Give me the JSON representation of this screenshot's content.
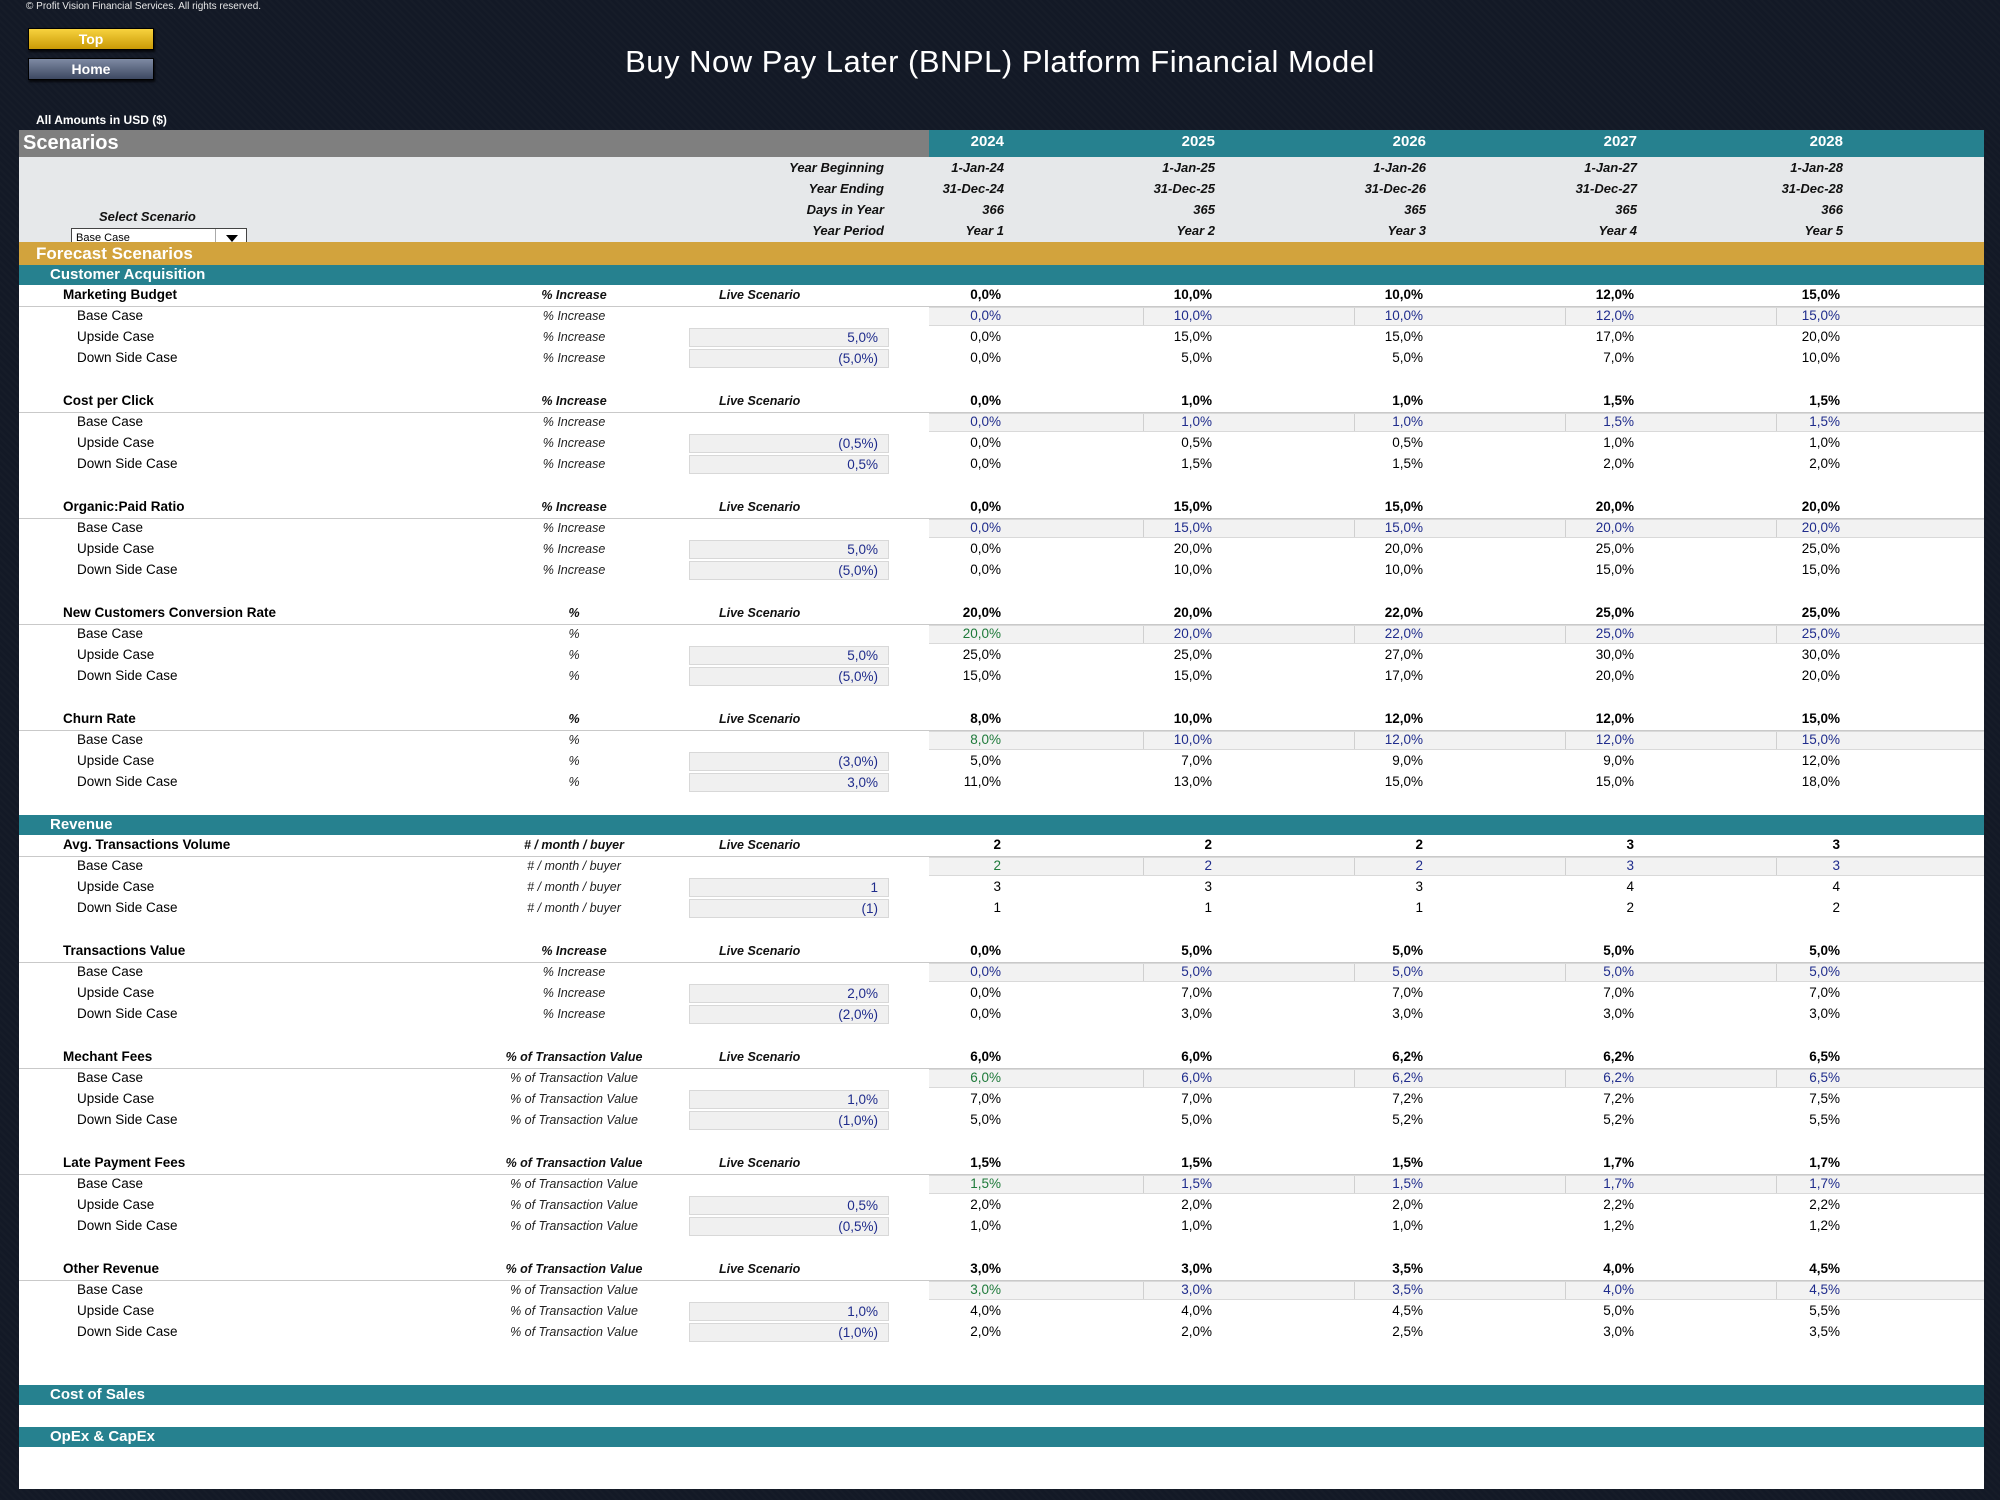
{
  "copyright": "© Profit Vision Financial Services. All rights reserved.",
  "nav": {
    "top_label": "Top",
    "home_label": "Home"
  },
  "title": "Buy Now Pay Later (BNPL) Platform Financial Model",
  "amounts_label": "All Amounts in  USD ($)",
  "scenarios_title": "Scenarios",
  "select_scenario_label": "Select Scenario",
  "selected_scenario": "Base Case",
  "years": [
    "2024",
    "2025",
    "2026",
    "2027",
    "2028"
  ],
  "header_rows": [
    {
      "label": "Year Beginning",
      "values": [
        "1-Jan-24",
        "1-Jan-25",
        "1-Jan-26",
        "1-Jan-27",
        "1-Jan-28"
      ]
    },
    {
      "label": "Year Ending",
      "values": [
        "31-Dec-24",
        "31-Dec-25",
        "31-Dec-26",
        "31-Dec-27",
        "31-Dec-28"
      ]
    },
    {
      "label": "Days in Year",
      "values": [
        "366",
        "365",
        "365",
        "365",
        "366"
      ]
    },
    {
      "label": "Year Period",
      "values": [
        "Year 1",
        "Year 2",
        "Year 3",
        "Year 4",
        "Year 5"
      ]
    }
  ],
  "forecast_title": "Forecast Scenarios",
  "live_scenario_label": "Live Scenario",
  "case_labels": {
    "base": "Base Case",
    "upside": "Upside Case",
    "down": "Down Side Case"
  },
  "sections": [
    {
      "title": "Customer Acquisition",
      "metrics": [
        {
          "name": "Marketing Budget",
          "unit": "% Increase",
          "live": [
            "0,0%",
            "10,0%",
            "10,0%",
            "12,0%",
            "15,0%"
          ],
          "base": [
            "0,0%",
            "10,0%",
            "10,0%",
            "12,0%",
            "15,0%"
          ],
          "base_first_green": false,
          "upside_adj": "5,0%",
          "upside": [
            "0,0%",
            "15,0%",
            "15,0%",
            "17,0%",
            "20,0%"
          ],
          "down_adj": "(5,0%)",
          "down": [
            "0,0%",
            "5,0%",
            "5,0%",
            "7,0%",
            "10,0%"
          ]
        },
        {
          "name": "Cost per Click",
          "unit": "% Increase",
          "live": [
            "0,0%",
            "1,0%",
            "1,0%",
            "1,5%",
            "1,5%"
          ],
          "base": [
            "0,0%",
            "1,0%",
            "1,0%",
            "1,5%",
            "1,5%"
          ],
          "base_first_green": false,
          "upside_adj": "(0,5%)",
          "upside": [
            "0,0%",
            "0,5%",
            "0,5%",
            "1,0%",
            "1,0%"
          ],
          "down_adj": "0,5%",
          "down": [
            "0,0%",
            "1,5%",
            "1,5%",
            "2,0%",
            "2,0%"
          ]
        },
        {
          "name": "Organic:Paid Ratio",
          "unit": "% Increase",
          "live": [
            "0,0%",
            "15,0%",
            "15,0%",
            "20,0%",
            "20,0%"
          ],
          "base": [
            "0,0%",
            "15,0%",
            "15,0%",
            "20,0%",
            "20,0%"
          ],
          "base_first_green": false,
          "upside_adj": "5,0%",
          "upside": [
            "0,0%",
            "20,0%",
            "20,0%",
            "25,0%",
            "25,0%"
          ],
          "down_adj": "(5,0%)",
          "down": [
            "0,0%",
            "10,0%",
            "10,0%",
            "15,0%",
            "15,0%"
          ]
        },
        {
          "name": "New Customers Conversion Rate",
          "unit": "%",
          "live": [
            "20,0%",
            "20,0%",
            "22,0%",
            "25,0%",
            "25,0%"
          ],
          "base": [
            "20,0%",
            "20,0%",
            "22,0%",
            "25,0%",
            "25,0%"
          ],
          "base_first_green": true,
          "upside_adj": "5,0%",
          "upside": [
            "25,0%",
            "25,0%",
            "27,0%",
            "30,0%",
            "30,0%"
          ],
          "down_adj": "(5,0%)",
          "down": [
            "15,0%",
            "15,0%",
            "17,0%",
            "20,0%",
            "20,0%"
          ]
        },
        {
          "name": "Churn Rate",
          "unit": "%",
          "live": [
            "8,0%",
            "10,0%",
            "12,0%",
            "12,0%",
            "15,0%"
          ],
          "base": [
            "8,0%",
            "10,0%",
            "12,0%",
            "12,0%",
            "15,0%"
          ],
          "base_first_green": true,
          "upside_adj": "(3,0%)",
          "upside": [
            "5,0%",
            "7,0%",
            "9,0%",
            "9,0%",
            "12,0%"
          ],
          "down_adj": "3,0%",
          "down": [
            "11,0%",
            "13,0%",
            "15,0%",
            "15,0%",
            "18,0%"
          ]
        }
      ]
    },
    {
      "title": "Revenue",
      "metrics": [
        {
          "name": "Avg. Transactions Volume",
          "unit": "# / month / buyer",
          "live": [
            "2",
            "2",
            "2",
            "3",
            "3"
          ],
          "base": [
            "2",
            "2",
            "2",
            "3",
            "3"
          ],
          "base_first_green": true,
          "upside_adj": "1",
          "upside": [
            "3",
            "3",
            "3",
            "4",
            "4"
          ],
          "down_adj": "(1)",
          "down": [
            "1",
            "1",
            "1",
            "2",
            "2"
          ]
        },
        {
          "name": "Transactions Value",
          "unit": "% Increase",
          "live": [
            "0,0%",
            "5,0%",
            "5,0%",
            "5,0%",
            "5,0%"
          ],
          "base": [
            "0,0%",
            "5,0%",
            "5,0%",
            "5,0%",
            "5,0%"
          ],
          "base_first_green": false,
          "upside_adj": "2,0%",
          "upside": [
            "0,0%",
            "7,0%",
            "7,0%",
            "7,0%",
            "7,0%"
          ],
          "down_adj": "(2,0%)",
          "down": [
            "0,0%",
            "3,0%",
            "3,0%",
            "3,0%",
            "3,0%"
          ]
        },
        {
          "name": "Mechant Fees",
          "unit": "% of Transaction Value",
          "live": [
            "6,0%",
            "6,0%",
            "6,2%",
            "6,2%",
            "6,5%"
          ],
          "base": [
            "6,0%",
            "6,0%",
            "6,2%",
            "6,2%",
            "6,5%"
          ],
          "base_first_green": true,
          "upside_adj": "1,0%",
          "upside": [
            "7,0%",
            "7,0%",
            "7,2%",
            "7,2%",
            "7,5%"
          ],
          "down_adj": "(1,0%)",
          "down": [
            "5,0%",
            "5,0%",
            "5,2%",
            "5,2%",
            "5,5%"
          ]
        },
        {
          "name": "Late Payment Fees",
          "unit": "% of Transaction Value",
          "live": [
            "1,5%",
            "1,5%",
            "1,5%",
            "1,7%",
            "1,7%"
          ],
          "base": [
            "1,5%",
            "1,5%",
            "1,5%",
            "1,7%",
            "1,7%"
          ],
          "base_first_green": true,
          "upside_adj": "0,5%",
          "upside": [
            "2,0%",
            "2,0%",
            "2,0%",
            "2,2%",
            "2,2%"
          ],
          "down_adj": "(0,5%)",
          "down": [
            "1,0%",
            "1,0%",
            "1,0%",
            "1,2%",
            "1,2%"
          ]
        },
        {
          "name": "Other Revenue",
          "unit": "% of Transaction Value",
          "live": [
            "3,0%",
            "3,0%",
            "3,5%",
            "4,0%",
            "4,5%"
          ],
          "base": [
            "3,0%",
            "3,0%",
            "3,5%",
            "4,0%",
            "4,5%"
          ],
          "base_first_green": true,
          "upside_adj": "1,0%",
          "upside": [
            "4,0%",
            "4,0%",
            "4,5%",
            "5,0%",
            "5,5%"
          ],
          "down_adj": "(1,0%)",
          "down": [
            "2,0%",
            "2,0%",
            "2,5%",
            "3,0%",
            "3,5%"
          ]
        }
      ]
    }
  ],
  "collapsed_sections": [
    "Cost of Sales",
    "OpEx & CapEx"
  ],
  "colors": {
    "teal": "#26818f",
    "gold": "#d2a33d",
    "base_blue": "#1f2c8c",
    "base_green": "#1e7a3a"
  }
}
